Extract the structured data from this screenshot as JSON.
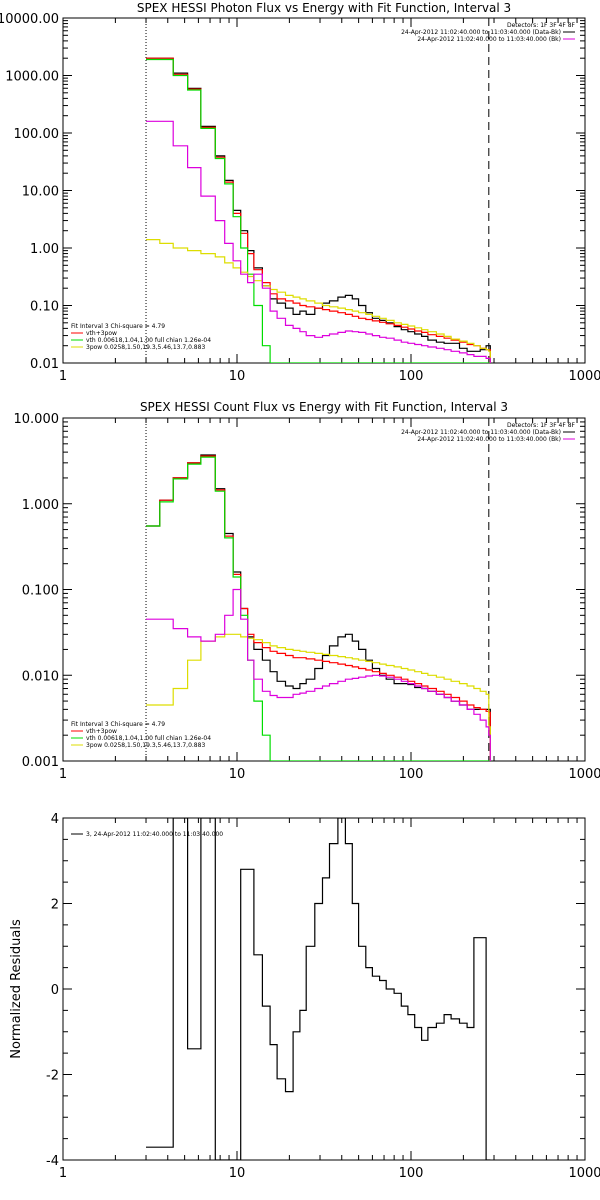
{
  "chart_data": [
    {
      "type": "line",
      "title": "SPEX HESSI Photon Flux vs Energy with Fit Function, Interval 3",
      "xlabel": "",
      "ylabel": "",
      "xscale": "log",
      "yscale": "log",
      "xlim": [
        1,
        1000
      ],
      "ylim": [
        0.01,
        10000
      ],
      "x_tick_labels": [
        "1",
        "10",
        "100",
        "1000"
      ],
      "y_ticks": [
        0.01,
        0.1,
        1,
        10,
        100,
        1000,
        10000
      ],
      "y_tick_labels": [
        "0.01",
        "0.10",
        "1.00",
        "10.00",
        "100.00",
        "1000.00",
        "10000.00"
      ],
      "vlines": [
        {
          "x": 3,
          "style": "dotted"
        },
        {
          "x": 280,
          "style": "dashed"
        }
      ],
      "legend_top_right": [
        "Detectors: 1F 3F 4F 8F",
        "24-Apr-2012 11:02:40.000 to 11:03:40.000 (Data-Bk)",
        "24-Apr-2012 11:02:40.000 to 11:03:40.000 (Bk)"
      ],
      "legend_bottom_left": [
        "Fit Interval 3   Chi-square = 4.79",
        "vth+3pow",
        "vth 0.00618,1.04,1.00  full chian 1.26e-04",
        "3pow 0.0258,1.50,19.3,5.46,13.7,0.883"
      ],
      "x": [
        3,
        3.6,
        4.3,
        5.2,
        6.2,
        7.5,
        8.5,
        9.5,
        10.5,
        11.5,
        12.5,
        14,
        15.5,
        17,
        19,
        21,
        23,
        25,
        28,
        31,
        34,
        38,
        42,
        46,
        50,
        55,
        60,
        66,
        72,
        80,
        88,
        96,
        105,
        115,
        125,
        140,
        155,
        170,
        190,
        210,
        230,
        250,
        270,
        280
      ],
      "series": [
        {
          "name": "Data-Bk",
          "color": "#000000",
          "values": [
            2000,
            2000,
            1100,
            600,
            130,
            40,
            15,
            4.5,
            2.0,
            0.9,
            0.45,
            0.22,
            0.13,
            0.11,
            0.09,
            0.07,
            0.08,
            0.07,
            0.09,
            0.11,
            0.12,
            0.14,
            0.15,
            0.13,
            0.1,
            0.075,
            0.06,
            0.055,
            0.05,
            0.043,
            0.038,
            0.035,
            0.032,
            0.029,
            0.025,
            0.023,
            0.022,
            0.022,
            0.018,
            0.016,
            0.016,
            0.017,
            0.02,
            0.02
          ]
        },
        {
          "name": "vth+3pow",
          "color": "#ff0000",
          "values": [
            2000,
            2000,
            1050,
            580,
            125,
            38,
            14,
            4.0,
            1.8,
            0.8,
            0.42,
            0.25,
            0.16,
            0.13,
            0.12,
            0.11,
            0.1,
            0.095,
            0.09,
            0.085,
            0.08,
            0.075,
            0.07,
            0.065,
            0.06,
            0.057,
            0.054,
            0.051,
            0.048,
            0.045,
            0.042,
            0.039,
            0.036,
            0.034,
            0.031,
            0.029,
            0.027,
            0.025,
            0.023,
            0.021,
            0.02,
            0.018,
            0.017,
            0.017
          ]
        },
        {
          "name": "vth",
          "color": "#00dd00",
          "values": [
            1900,
            1900,
            1000,
            560,
            120,
            36,
            13,
            3.5,
            1.0,
            0.35,
            0.1,
            0.02,
            0.01,
            0.01,
            0.01,
            0.01,
            0.01,
            0.01,
            0.01,
            0.01,
            0.01,
            0.01,
            0.01,
            0.01,
            0.01,
            0.01,
            0.01,
            0.01,
            0.01,
            0.01,
            0.01,
            0.01,
            0.01,
            0.01,
            0.01,
            0.01,
            0.01,
            0.01,
            0.01,
            0.01,
            0.01,
            0.01,
            0.01,
            0.01
          ]
        },
        {
          "name": "3pow",
          "color": "#dddd00",
          "values": [
            1.4,
            1.2,
            1.0,
            0.9,
            0.8,
            0.7,
            0.55,
            0.45,
            0.38,
            0.32,
            0.27,
            0.22,
            0.19,
            0.17,
            0.15,
            0.14,
            0.13,
            0.12,
            0.11,
            0.1,
            0.095,
            0.09,
            0.085,
            0.08,
            0.075,
            0.07,
            0.065,
            0.06,
            0.055,
            0.05,
            0.047,
            0.044,
            0.041,
            0.038,
            0.035,
            0.032,
            0.029,
            0.026,
            0.024,
            0.022,
            0.02,
            0.018,
            0.017,
            0.016
          ]
        },
        {
          "name": "Bk",
          "color": "#dd00dd",
          "values": [
            160,
            160,
            60,
            25,
            8,
            3,
            1.2,
            0.6,
            0.35,
            0.25,
            0.35,
            0.2,
            0.08,
            0.06,
            0.045,
            0.04,
            0.035,
            0.03,
            0.028,
            0.03,
            0.032,
            0.034,
            0.036,
            0.035,
            0.034,
            0.032,
            0.03,
            0.028,
            0.027,
            0.025,
            0.023,
            0.022,
            0.021,
            0.02,
            0.019,
            0.018,
            0.017,
            0.016,
            0.015,
            0.014,
            0.013,
            0.013,
            0.012,
            0.012
          ]
        }
      ]
    },
    {
      "type": "line",
      "title": "SPEX HESSI Count Flux vs Energy with Fit Function, Interval 3",
      "xlabel": "",
      "ylabel": "",
      "xscale": "log",
      "yscale": "log",
      "xlim": [
        1,
        1000
      ],
      "ylim": [
        0.001,
        10
      ],
      "x_tick_labels": [
        "1",
        "10",
        "100",
        "1000"
      ],
      "y_ticks": [
        0.001,
        0.01,
        0.1,
        1,
        10
      ],
      "y_tick_labels": [
        "0.001",
        "0.010",
        "0.100",
        "1.000",
        "10.000"
      ],
      "vlines": [
        {
          "x": 3,
          "style": "dotted"
        },
        {
          "x": 280,
          "style": "dashed"
        }
      ],
      "legend_top_right": [
        "Detectors: 1F 3F 4F 8F",
        "24-Apr-2012 11:02:40.000 to 11:03:40.000 (Data-Bk)",
        "24-Apr-2012 11:02:40.000 to 11:03:40.000 (Bk)"
      ],
      "legend_bottom_left": [
        "Fit Interval 3   Chi-square = 4.79",
        "vth+3pow",
        "vth 0.00618,1.04,1.00  full chian 1.26e-04",
        "3pow 0.0258,1.50,19.3,5.46,13.7,0.883"
      ],
      "x": [
        3,
        3.6,
        4.3,
        5.2,
        6.2,
        7.5,
        8.5,
        9.5,
        10.5,
        11.5,
        12.5,
        14,
        15.5,
        17,
        19,
        21,
        23,
        25,
        28,
        31,
        34,
        38,
        42,
        46,
        50,
        55,
        60,
        66,
        72,
        80,
        88,
        96,
        105,
        115,
        125,
        140,
        155,
        170,
        190,
        210,
        230,
        250,
        270,
        280
      ],
      "series": [
        {
          "name": "Data-Bk",
          "color": "#000000",
          "values": [
            0.55,
            1.1,
            2.0,
            3.0,
            3.7,
            1.5,
            0.45,
            0.16,
            0.06,
            0.028,
            0.02,
            0.015,
            0.011,
            0.0085,
            0.0075,
            0.007,
            0.008,
            0.009,
            0.012,
            0.017,
            0.022,
            0.028,
            0.03,
            0.025,
            0.02,
            0.015,
            0.012,
            0.01,
            0.009,
            0.008,
            0.008,
            0.0078,
            0.0072,
            0.007,
            0.0065,
            0.006,
            0.0055,
            0.005,
            0.0045,
            0.004,
            0.004,
            0.004,
            0.004,
            0.004
          ]
        },
        {
          "name": "vth+3pow",
          "color": "#ff0000",
          "values": [
            0.55,
            1.1,
            2.0,
            3.0,
            3.6,
            1.45,
            0.42,
            0.15,
            0.06,
            0.03,
            0.024,
            0.021,
            0.019,
            0.018,
            0.017,
            0.016,
            0.016,
            0.0155,
            0.015,
            0.0145,
            0.014,
            0.0135,
            0.013,
            0.0125,
            0.012,
            0.0115,
            0.011,
            0.0105,
            0.01,
            0.0095,
            0.009,
            0.0085,
            0.008,
            0.0075,
            0.007,
            0.0065,
            0.006,
            0.0055,
            0.005,
            0.0045,
            0.0042,
            0.004,
            0.0038,
            0.0037
          ]
        },
        {
          "name": "vth",
          "color": "#00dd00",
          "values": [
            0.55,
            1.05,
            1.95,
            2.9,
            3.5,
            1.4,
            0.4,
            0.14,
            0.05,
            0.015,
            0.005,
            0.002,
            0.001,
            0.001,
            0.001,
            0.001,
            0.001,
            0.001,
            0.001,
            0.001,
            0.001,
            0.001,
            0.001,
            0.001,
            0.001,
            0.001,
            0.001,
            0.001,
            0.001,
            0.001,
            0.001,
            0.001,
            0.001,
            0.001,
            0.001,
            0.001,
            0.001,
            0.001,
            0.001,
            0.001,
            0.001,
            0.001,
            0.001,
            0.001
          ]
        },
        {
          "name": "3pow",
          "color": "#dddd00",
          "values": [
            0.0045,
            0.0045,
            0.007,
            0.015,
            0.025,
            0.028,
            0.03,
            0.03,
            0.028,
            0.027,
            0.026,
            0.024,
            0.022,
            0.021,
            0.02,
            0.0195,
            0.019,
            0.0185,
            0.018,
            0.0175,
            0.017,
            0.0165,
            0.016,
            0.0155,
            0.015,
            0.0145,
            0.014,
            0.0135,
            0.013,
            0.0125,
            0.012,
            0.0115,
            0.011,
            0.0105,
            0.01,
            0.0095,
            0.009,
            0.0085,
            0.008,
            0.0075,
            0.007,
            0.0065,
            0.006,
            0.0025
          ]
        },
        {
          "name": "Bk",
          "color": "#dd00dd",
          "values": [
            0.045,
            0.045,
            0.035,
            0.028,
            0.025,
            0.03,
            0.05,
            0.1,
            0.045,
            0.015,
            0.009,
            0.0065,
            0.0058,
            0.0055,
            0.0055,
            0.006,
            0.0062,
            0.0065,
            0.007,
            0.0075,
            0.008,
            0.0085,
            0.009,
            0.0092,
            0.0095,
            0.0098,
            0.01,
            0.0098,
            0.0095,
            0.009,
            0.0085,
            0.008,
            0.0075,
            0.007,
            0.0065,
            0.006,
            0.0055,
            0.005,
            0.0045,
            0.004,
            0.0035,
            0.003,
            0.0025,
            0.002
          ]
        }
      ]
    },
    {
      "type": "line",
      "title": "",
      "xlabel": "",
      "ylabel": "Normalized Residuals",
      "xscale": "log",
      "yscale": "linear",
      "xlim": [
        1,
        1000
      ],
      "ylim": [
        -4,
        4
      ],
      "x_tick_labels": [
        "1",
        "10",
        "100",
        "1000"
      ],
      "y_ticks": [
        -4,
        -2,
        0,
        2,
        4
      ],
      "y_tick_labels": [
        "-4",
        "-2",
        "0",
        "2",
        "4"
      ],
      "legend_top_left": [
        "3, 24-Apr-2012 11:02:40.000 to 11:03:40.000"
      ],
      "x": [
        3,
        3.6,
        4.3,
        5.2,
        6.2,
        7.5,
        8.5,
        9.5,
        10.5,
        11.5,
        12.5,
        14,
        15.5,
        17,
        19,
        21,
        23,
        25,
        28,
        31,
        34,
        38,
        42,
        46,
        50,
        55,
        60,
        66,
        72,
        80,
        88,
        96,
        105,
        115,
        125,
        140,
        155,
        170,
        190,
        210,
        230,
        250,
        270,
        280
      ],
      "series": [
        {
          "name": "",
          "color": "#000000",
          "values": [
            -3.7,
            -3.7,
            4.0,
            -1.4,
            4.0,
            -4.0,
            -4.0,
            -4.0,
            2.8,
            2.8,
            0.8,
            -0.4,
            -1.3,
            -2.1,
            -2.4,
            -1.0,
            -0.5,
            1.0,
            2.0,
            2.6,
            3.4,
            4.0,
            3.4,
            2.0,
            1.0,
            0.5,
            0.3,
            0.2,
            0.0,
            -0.1,
            -0.4,
            -0.6,
            -0.9,
            -1.2,
            -0.9,
            -0.8,
            -0.6,
            -0.7,
            -0.8,
            -0.9,
            1.2,
            1.2,
            -4.0,
            -4.0
          ]
        }
      ]
    }
  ]
}
